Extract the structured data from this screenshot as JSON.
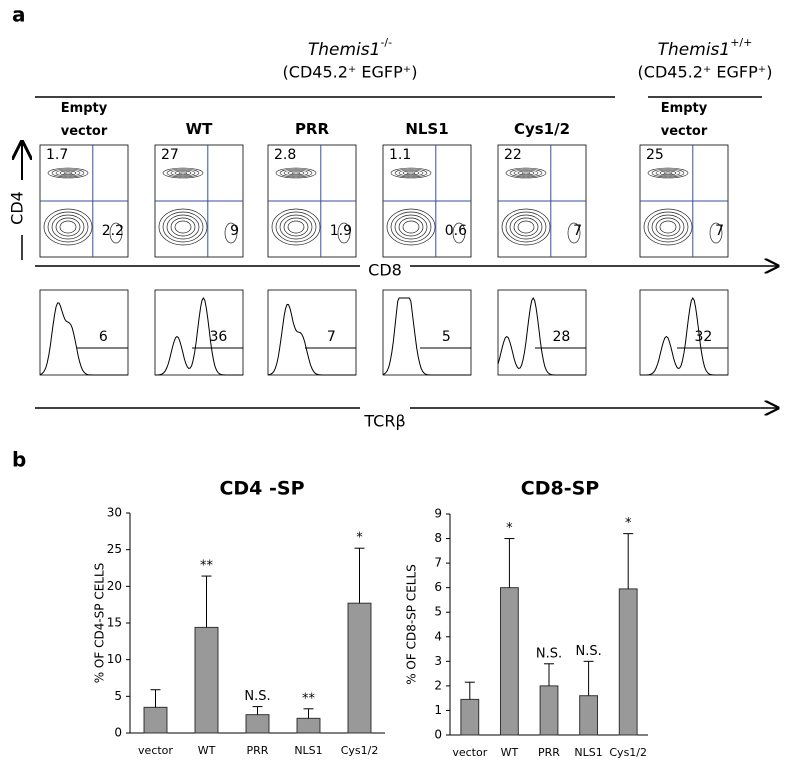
{
  "panel_a": {
    "label": "a",
    "y_axis": "CD4",
    "x_axis": "CD8",
    "hist_axis": "TCRβ",
    "groups": [
      {
        "gene": "Themis1",
        "genotype": "-/-",
        "subtitle": "(CD45.2⁺ EGFP⁺)",
        "samples": [
          {
            "name": "Empty vector",
            "cd4_sp": 1.7,
            "cd8_sp": 2.2,
            "tcrb": 6
          },
          {
            "name": "WT",
            "cd4_sp": 27,
            "cd8_sp": 9,
            "tcrb": 36
          },
          {
            "name": "PRR",
            "cd4_sp": 2.8,
            "cd8_sp": 1.9,
            "tcrb": 7
          },
          {
            "name": "NLS1",
            "cd4_sp": 1.1,
            "cd8_sp": 0.6,
            "tcrb": 5
          },
          {
            "name": "Cys1/2",
            "cd4_sp": 22,
            "cd8_sp": 7,
            "tcrb": 28
          }
        ]
      },
      {
        "gene": "Themis1",
        "genotype": "+/+",
        "subtitle": "(CD45.2⁺ EGFP⁺)",
        "samples": [
          {
            "name": "Empty vector",
            "cd4_sp": 25,
            "cd8_sp": 7,
            "tcrb": 32
          }
        ]
      }
    ]
  },
  "panel_b_label": "b",
  "chart_data": [
    {
      "type": "bar",
      "title": "CD4 -SP",
      "y_label": "% OF CD4-SP CELLS",
      "categories": [
        "vector",
        "WT",
        "PRR",
        "NLS1",
        "Cys1/2"
      ],
      "values": [
        3.5,
        14.4,
        2.5,
        2.0,
        17.7
      ],
      "errors": [
        2.4,
        7.0,
        1.1,
        1.3,
        7.5
      ],
      "annotations": [
        null,
        "**",
        "N.S.",
        "**",
        "*"
      ],
      "color": "#999999",
      "ylim": [
        0,
        30
      ],
      "yticks": [
        0,
        5,
        10,
        15,
        20,
        25,
        30
      ]
    },
    {
      "type": "bar",
      "title": "CD8-SP",
      "y_label": "% OF CD8-SP CELLS",
      "categories": [
        "vector",
        "WT",
        "PRR",
        "NLS1",
        "Cys1/2"
      ],
      "values": [
        1.45,
        6.0,
        2.0,
        1.6,
        5.95
      ],
      "errors": [
        0.7,
        2.0,
        0.9,
        1.4,
        2.25
      ],
      "annotations": [
        null,
        "*",
        "N.S.",
        "N.S.",
        "*"
      ],
      "color": "#999999",
      "ylim": [
        0,
        9
      ],
      "yticks": [
        0,
        1,
        2,
        3,
        4,
        5,
        6,
        7,
        8,
        9
      ]
    }
  ]
}
